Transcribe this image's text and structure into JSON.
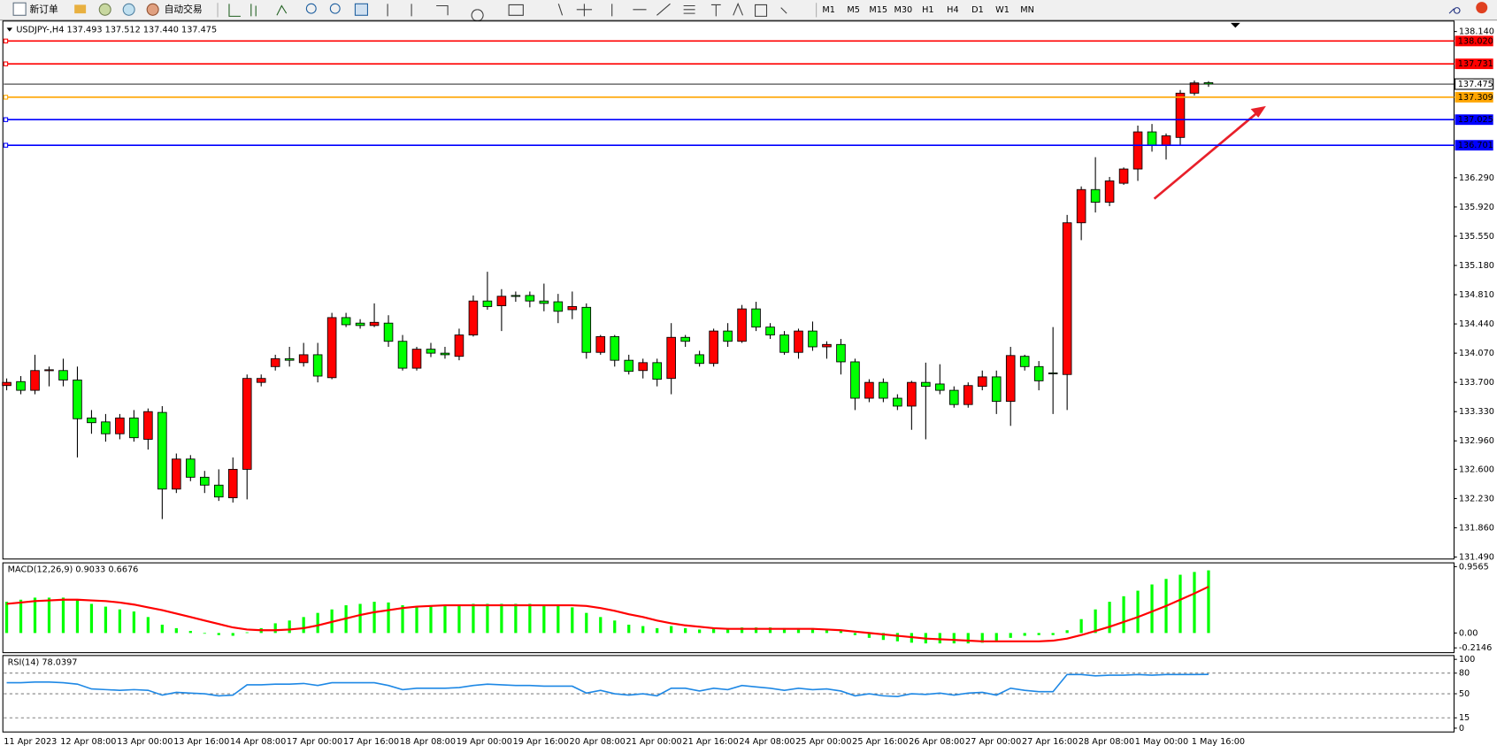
{
  "toolbar": {
    "buttons": [
      "新订单",
      "自动交易"
    ],
    "timeframes": [
      "M1",
      "M5",
      "M15",
      "M30",
      "H1",
      "H4",
      "D1",
      "W1",
      "MN"
    ]
  },
  "chart_data": [
    {
      "type": "candlestick",
      "title": "USDJPY-,H4  137.493 137.512 137.440 137.475",
      "categories": [
        "11 Apr 2023",
        null,
        null,
        null,
        "12 Apr 08:00",
        null,
        null,
        null,
        "13 Apr 00:00",
        null,
        null,
        null,
        "13 Apr 16:00",
        null,
        null,
        null,
        "14 Apr 08:00",
        null,
        null,
        null,
        "17 Apr 00:00",
        null,
        null,
        null,
        "17 Apr 16:00",
        null,
        null,
        null,
        "18 Apr 08:00",
        null,
        null,
        null,
        "19 Apr 00:00",
        null,
        null,
        null,
        "19 Apr 16:00",
        null,
        null,
        null,
        "20 Apr 08:00",
        null,
        null,
        null,
        "21 Apr 00:00",
        null,
        null,
        null,
        "21 Apr 16:00",
        null,
        null,
        null,
        "24 Apr 08:00",
        null,
        null,
        null,
        "25 Apr 00:00",
        null,
        null,
        null,
        "25 Apr 16:00",
        null,
        null,
        null,
        "26 Apr 08:00",
        null,
        null,
        null,
        "27 Apr 00:00",
        null,
        null,
        null,
        "27 Apr 16:00",
        null,
        null,
        null,
        "28 Apr 08:00",
        null,
        null,
        null,
        "1 May 00:00",
        null,
        null,
        null,
        "1 May 16:00",
        null
      ],
      "open": [
        133.66,
        133.71,
        133.6,
        133.85,
        133.85,
        133.73,
        133.25,
        133.2,
        133.05,
        133.25,
        132.98,
        133.32,
        132.35,
        132.73,
        132.5,
        132.4,
        132.24,
        132.6,
        133.7,
        133.9,
        134.0,
        133.95,
        134.05,
        133.76,
        134.52,
        134.45,
        134.42,
        134.45,
        134.22,
        133.88,
        134.12,
        134.07,
        134.03,
        134.3,
        134.73,
        134.67,
        134.8,
        134.8,
        134.73,
        134.72,
        134.62,
        134.65,
        134.08,
        134.28,
        133.98,
        133.85,
        133.95,
        133.75,
        134.27,
        134.05,
        133.94,
        134.35,
        134.22,
        134.63,
        134.4,
        134.3,
        134.08,
        134.35,
        134.15,
        134.18,
        133.96,
        133.5,
        133.7,
        133.5,
        133.4,
        133.7,
        133.68,
        133.6,
        133.42,
        133.65,
        133.77,
        133.46,
        134.03,
        133.9,
        133.82,
        133.8,
        135.72,
        136.14,
        135.98,
        136.22,
        136.4,
        136.87,
        136.7,
        136.8,
        137.36,
        137.493
      ],
      "high": [
        133.75,
        133.78,
        134.05,
        133.9,
        134.0,
        133.9,
        133.35,
        133.3,
        133.3,
        133.35,
        133.37,
        133.4,
        132.8,
        132.78,
        132.58,
        132.6,
        132.75,
        133.8,
        133.8,
        134.05,
        134.15,
        134.2,
        134.2,
        134.58,
        134.58,
        134.5,
        134.7,
        134.55,
        134.3,
        134.15,
        134.2,
        134.15,
        134.38,
        134.8,
        135.1,
        134.88,
        134.85,
        134.85,
        134.95,
        134.82,
        134.85,
        134.7,
        134.3,
        134.3,
        134.05,
        134.0,
        134.0,
        134.45,
        134.3,
        134.1,
        134.38,
        134.45,
        134.68,
        134.72,
        134.45,
        134.35,
        134.38,
        134.47,
        134.22,
        134.25,
        134.0,
        133.74,
        133.75,
        133.55,
        133.72,
        133.95,
        133.93,
        133.65,
        133.7,
        133.85,
        133.85,
        134.15,
        134.05,
        133.97,
        134.4,
        135.82,
        136.18,
        136.55,
        136.3,
        136.42,
        136.95,
        136.97,
        136.85,
        137.4,
        137.52,
        137.512
      ],
      "low": [
        133.6,
        133.55,
        133.55,
        133.65,
        133.65,
        132.75,
        133.05,
        132.95,
        132.98,
        132.95,
        132.85,
        131.97,
        132.3,
        132.45,
        132.3,
        132.2,
        132.18,
        132.22,
        133.65,
        133.85,
        133.9,
        133.9,
        133.7,
        133.74,
        134.4,
        134.38,
        134.4,
        134.15,
        133.85,
        133.85,
        134.02,
        134.0,
        133.98,
        134.28,
        134.62,
        134.35,
        134.72,
        134.65,
        134.6,
        134.45,
        134.5,
        134.0,
        134.05,
        133.9,
        133.8,
        133.75,
        133.65,
        133.55,
        134.15,
        133.9,
        133.9,
        134.15,
        134.2,
        134.35,
        134.25,
        134.05,
        134.0,
        134.1,
        134.0,
        133.8,
        133.35,
        133.45,
        133.45,
        133.35,
        133.1,
        132.98,
        133.55,
        133.38,
        133.38,
        133.6,
        133.3,
        133.15,
        133.85,
        133.6,
        133.3,
        133.35,
        135.5,
        135.85,
        135.93,
        136.2,
        136.25,
        136.62,
        136.52,
        136.7,
        137.33,
        137.44
      ],
      "close": [
        133.7,
        133.6,
        133.85,
        133.86,
        133.73,
        133.24,
        133.19,
        133.05,
        133.25,
        133.0,
        133.33,
        132.35,
        132.73,
        132.5,
        132.4,
        132.25,
        132.6,
        133.75,
        133.75,
        134.0,
        133.98,
        134.05,
        133.78,
        134.52,
        134.43,
        134.42,
        134.46,
        134.22,
        133.88,
        134.12,
        134.07,
        134.05,
        134.3,
        134.73,
        134.66,
        134.79,
        134.79,
        134.73,
        134.7,
        134.6,
        134.66,
        134.08,
        134.28,
        133.98,
        133.84,
        133.95,
        133.74,
        134.27,
        134.22,
        133.94,
        134.35,
        134.22,
        134.63,
        134.4,
        134.3,
        134.08,
        134.35,
        134.15,
        134.18,
        133.96,
        133.5,
        133.7,
        133.5,
        133.4,
        133.7,
        133.65,
        133.6,
        133.42,
        133.66,
        133.77,
        133.46,
        134.04,
        133.9,
        133.72,
        133.81,
        135.72,
        136.14,
        135.98,
        136.25,
        136.4,
        136.87,
        136.7,
        136.82,
        137.36,
        137.49,
        137.475
      ],
      "up_color": "#ff0000",
      "down_color": "#00ff00",
      "ylim": [
        131.465,
        138.273
      ],
      "yticks": [
        {
          "value": 138.14,
          "label": "138.140"
        },
        {
          "value": 136.29,
          "label": "136.290"
        },
        {
          "value": 135.92,
          "label": "135.920"
        },
        {
          "value": 135.55,
          "label": "135.550"
        },
        {
          "value": 135.18,
          "label": "135.180"
        },
        {
          "value": 134.81,
          "label": "134.810"
        },
        {
          "value": 134.44,
          "label": "134.440"
        },
        {
          "value": 134.07,
          "label": "134.070"
        },
        {
          "value": 133.7,
          "label": "133.700"
        },
        {
          "value": 133.33,
          "label": "133.330"
        },
        {
          "value": 132.96,
          "label": "132.960"
        },
        {
          "value": 132.6,
          "label": "132.600"
        },
        {
          "value": 132.23,
          "label": "132.230"
        },
        {
          "value": 131.86,
          "label": "131.860"
        },
        {
          "value": 131.49,
          "label": "131.490"
        }
      ],
      "levels": [
        {
          "value": 138.02,
          "label": "138.020",
          "color": "#ff0000"
        },
        {
          "value": 137.731,
          "label": "137.731",
          "color": "#ff0000"
        },
        {
          "value": 137.309,
          "label": "137.309",
          "color": "#ffa500"
        },
        {
          "value": 137.025,
          "label": "137.025",
          "color": "#0000ff"
        },
        {
          "value": 136.701,
          "label": "136.701",
          "color": "#0000ff"
        }
      ],
      "last_price": 137.475
    },
    {
      "type": "macd",
      "title": "MACD(12,26,9) 0.9033 0.6676",
      "histogram": {
        "color": "#00ff00",
        "values": [
          0.45,
          0.48,
          0.51,
          0.51,
          0.51,
          0.48,
          0.42,
          0.38,
          0.34,
          0.31,
          0.23,
          0.12,
          0.07,
          0.03,
          -0.01,
          -0.03,
          -0.04,
          0.01,
          0.07,
          0.14,
          0.18,
          0.23,
          0.29,
          0.34,
          0.4,
          0.42,
          0.45,
          0.44,
          0.4,
          0.38,
          0.38,
          0.4,
          0.41,
          0.42,
          0.42,
          0.42,
          0.42,
          0.42,
          0.41,
          0.4,
          0.37,
          0.29,
          0.23,
          0.18,
          0.12,
          0.1,
          0.07,
          0.1,
          0.07,
          0.05,
          0.07,
          0.07,
          0.08,
          0.08,
          0.08,
          0.07,
          0.07,
          0.07,
          0.05,
          0.03,
          -0.03,
          -0.07,
          -0.1,
          -0.12,
          -0.14,
          -0.15,
          -0.15,
          -0.15,
          -0.15,
          -0.14,
          -0.11,
          -0.07,
          -0.04,
          -0.03,
          -0.03,
          0.04,
          0.2,
          0.34,
          0.45,
          0.53,
          0.61,
          0.7,
          0.78,
          0.84,
          0.88,
          0.9033
        ]
      },
      "signal": {
        "color": "#ff0000",
        "values": [
          0.42,
          0.44,
          0.46,
          0.47,
          0.48,
          0.48,
          0.47,
          0.46,
          0.44,
          0.41,
          0.37,
          0.33,
          0.28,
          0.23,
          0.18,
          0.13,
          0.08,
          0.05,
          0.04,
          0.04,
          0.05,
          0.07,
          0.11,
          0.16,
          0.21,
          0.26,
          0.3,
          0.33,
          0.36,
          0.38,
          0.39,
          0.4,
          0.4,
          0.4,
          0.4,
          0.4,
          0.4,
          0.4,
          0.4,
          0.4,
          0.4,
          0.39,
          0.36,
          0.32,
          0.27,
          0.23,
          0.18,
          0.14,
          0.11,
          0.09,
          0.07,
          0.06,
          0.06,
          0.06,
          0.06,
          0.06,
          0.06,
          0.06,
          0.05,
          0.04,
          0.02,
          0,
          -0.02,
          -0.04,
          -0.06,
          -0.08,
          -0.09,
          -0.1,
          -0.11,
          -0.12,
          -0.12,
          -0.12,
          -0.12,
          -0.12,
          -0.11,
          -0.08,
          -0.03,
          0.03,
          0.09,
          0.16,
          0.23,
          0.31,
          0.39,
          0.48,
          0.57,
          0.6676
        ]
      },
      "ylim": [
        -0.2146,
        0.9565
      ],
      "yticks": [
        0.9565,
        {
          "value": 0,
          "label": "0.00"
        },
        -0.2146
      ]
    },
    {
      "type": "line",
      "title": "RSI(14) 78.0397",
      "color": "#1e88e5",
      "values": [
        66,
        66,
        67,
        67,
        66,
        64,
        57,
        56,
        55,
        56,
        55,
        48,
        52,
        51,
        50,
        47,
        48,
        63,
        63,
        64,
        64,
        65,
        62,
        66,
        66,
        66,
        66,
        62,
        56,
        58,
        58,
        58,
        59,
        62,
        64,
        63,
        62,
        62,
        61,
        61,
        61,
        51,
        55,
        50,
        48,
        50,
        47,
        58,
        58,
        54,
        58,
        56,
        62,
        60,
        58,
        55,
        58,
        56,
        57,
        54,
        47,
        50,
        47,
        46,
        50,
        49,
        51,
        48,
        51,
        52,
        48,
        58,
        55,
        53,
        53,
        78,
        78,
        76,
        77,
        77,
        78,
        77,
        78,
        78,
        78,
        78.0397
      ],
      "ylim": [
        0,
        100
      ],
      "yticks": [
        100,
        80,
        50,
        15,
        0
      ]
    }
  ]
}
